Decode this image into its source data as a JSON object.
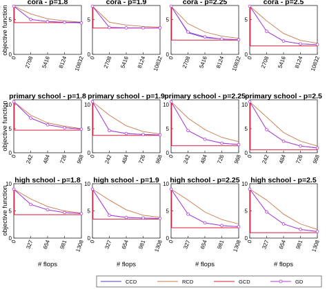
{
  "legend": {
    "entries": [
      {
        "name": "CCD",
        "color": "#4b3fc4",
        "marker": "none"
      },
      {
        "name": "RCD",
        "color": "#c9784a",
        "marker": "none"
      },
      {
        "name": "GCD",
        "color": "#d81b3a",
        "marker": "none"
      },
      {
        "name": "GD",
        "color": "#b23ad6",
        "marker": "circle"
      }
    ]
  },
  "colors": {
    "CCD": "#4b3fc4",
    "RCD": "#c9784a",
    "GCD": "#d81b3a",
    "GD": "#b23ad6"
  },
  "ylabel": "objective function",
  "xlabel": "# flops",
  "chart_data": [
    {
      "type": "line",
      "title": "cora - p=1.8",
      "x": [
        0,
        2708,
        5416,
        8124,
        10832
      ],
      "ylim": [
        0,
        7
      ],
      "yticks": [
        0,
        5
      ],
      "series": [
        {
          "name": "CCD",
          "values": [
            6.9,
            5.0,
            4.7,
            4.6,
            4.6
          ]
        },
        {
          "name": "RCD",
          "values": [
            6.9,
            5.8,
            5.1,
            4.8,
            4.6
          ]
        },
        {
          "name": "GCD",
          "values": [
            4.55,
            4.55,
            4.55,
            4.55,
            4.55
          ]
        },
        {
          "name": "GD",
          "values": [
            6.9,
            5.0,
            4.7,
            4.6,
            4.5
          ]
        }
      ]
    },
    {
      "type": "line",
      "title": "cora - p=1.9",
      "x": [
        0,
        2708,
        5416,
        8124,
        10832
      ],
      "ylim": [
        0,
        7
      ],
      "yticks": [
        0,
        5
      ],
      "series": [
        {
          "name": "CCD",
          "values": [
            6.9,
            3.85,
            3.8,
            3.8,
            3.8
          ]
        },
        {
          "name": "RCD",
          "values": [
            6.9,
            4.6,
            4.2,
            4.0,
            3.9
          ]
        },
        {
          "name": "GCD",
          "values": [
            3.78,
            3.78,
            3.78,
            3.78,
            3.78
          ]
        },
        {
          "name": "GD",
          "values": [
            6.9,
            3.85,
            3.8,
            3.8,
            3.8
          ]
        }
      ]
    },
    {
      "type": "line",
      "title": "cora - p=2.25",
      "x": [
        0,
        2708,
        5416,
        8124,
        10832
      ],
      "ylim": [
        0,
        7
      ],
      "yticks": [
        0,
        5
      ],
      "series": [
        {
          "name": "CCD",
          "values": [
            6.9,
            3.1,
            2.4,
            2.2,
            2.1
          ]
        },
        {
          "name": "RCD",
          "values": [
            6.9,
            4.4,
            3.2,
            2.6,
            2.3
          ]
        },
        {
          "name": "GCD",
          "values": [
            2.05,
            2.05,
            2.05,
            2.05,
            2.05
          ]
        },
        {
          "name": "GD",
          "values": [
            6.9,
            3.2,
            2.5,
            2.2,
            2.1
          ]
        }
      ]
    },
    {
      "type": "line",
      "title": "cora - p=2.5",
      "x": [
        0,
        2708,
        5416,
        8124,
        10832
      ],
      "ylim": [
        0,
        7
      ],
      "yticks": [
        0,
        5
      ],
      "series": [
        {
          "name": "CCD",
          "values": [
            6.9,
            3.3,
            1.9,
            1.5,
            1.4
          ]
        },
        {
          "name": "RCD",
          "values": [
            6.9,
            4.8,
            3.0,
            2.0,
            1.6
          ]
        },
        {
          "name": "GCD",
          "values": [
            1.2,
            1.2,
            1.2,
            1.2,
            1.2
          ]
        },
        {
          "name": "GD",
          "values": [
            6.9,
            3.3,
            1.9,
            1.5,
            1.4
          ]
        }
      ]
    },
    {
      "type": "line",
      "title": "primary school - p=1.8",
      "x": [
        0,
        242,
        484,
        726,
        968
      ],
      "ylim": [
        0,
        11
      ],
      "yticks": [
        0,
        5,
        10
      ],
      "series": [
        {
          "name": "CCD",
          "values": [
            10.6,
            7.2,
            5.8,
            5.2,
            4.9
          ]
        },
        {
          "name": "RCD",
          "values": [
            10.6,
            7.8,
            6.2,
            5.5,
            5.0
          ]
        },
        {
          "name": "GCD",
          "values": [
            4.7,
            4.7,
            4.7,
            4.7,
            4.7
          ]
        },
        {
          "name": "GD",
          "values": [
            10.6,
            7.2,
            5.8,
            5.2,
            4.9
          ]
        }
      ]
    },
    {
      "type": "line",
      "title": "primary school - p=1.9",
      "x": [
        0,
        242,
        484,
        726,
        968
      ],
      "ylim": [
        0,
        11
      ],
      "yticks": [
        0,
        5,
        10
      ],
      "series": [
        {
          "name": "CCD",
          "values": [
            10.6,
            4.6,
            4.0,
            3.8,
            3.7
          ]
        },
        {
          "name": "RCD",
          "values": [
            10.6,
            7.8,
            5.6,
            4.4,
            3.9
          ]
        },
        {
          "name": "GCD",
          "values": [
            3.6,
            3.6,
            3.6,
            3.6,
            3.6
          ]
        },
        {
          "name": "GD",
          "values": [
            10.6,
            4.6,
            4.0,
            3.8,
            3.7
          ]
        }
      ]
    },
    {
      "type": "line",
      "title": "primary school - p=2.25",
      "x": [
        0,
        242,
        484,
        726,
        968
      ],
      "ylim": [
        0,
        11
      ],
      "yticks": [
        0,
        5,
        10
      ],
      "series": [
        {
          "name": "CCD",
          "values": [
            10.6,
            4.6,
            2.8,
            2.0,
            1.7
          ]
        },
        {
          "name": "RCD",
          "values": [
            10.6,
            7.2,
            4.8,
            3.2,
            2.3
          ]
        },
        {
          "name": "GCD",
          "values": [
            1.45,
            1.45,
            1.45,
            1.45,
            1.45
          ]
        },
        {
          "name": "GD",
          "values": [
            10.6,
            4.6,
            2.8,
            2.0,
            1.7
          ]
        }
      ]
    },
    {
      "type": "line",
      "title": "primary school - p=2.5",
      "x": [
        0,
        242,
        484,
        726,
        968
      ],
      "ylim": [
        0,
        11
      ],
      "yticks": [
        0,
        5,
        10
      ],
      "series": [
        {
          "name": "CCD",
          "values": [
            10.6,
            4.8,
            2.4,
            1.4,
            1.0
          ]
        },
        {
          "name": "RCD",
          "values": [
            10.6,
            7.4,
            4.2,
            2.4,
            1.4
          ]
        },
        {
          "name": "GCD",
          "values": [
            0.6,
            0.6,
            0.6,
            0.6,
            0.6
          ]
        },
        {
          "name": "GD",
          "values": [
            10.6,
            4.8,
            2.4,
            1.4,
            1.0
          ]
        }
      ]
    },
    {
      "type": "line",
      "title": "high school - p=1.8",
      "x": [
        0,
        327,
        654,
        981,
        1308
      ],
      "ylim": [
        0,
        10
      ],
      "yticks": [
        0,
        5,
        10
      ],
      "series": [
        {
          "name": "CCD",
          "values": [
            9.0,
            6.2,
            5.2,
            4.7,
            4.5
          ]
        },
        {
          "name": "RCD",
          "values": [
            9.0,
            7.2,
            5.8,
            5.0,
            4.6
          ]
        },
        {
          "name": "GCD",
          "values": [
            4.3,
            4.3,
            4.3,
            4.3,
            4.3
          ]
        },
        {
          "name": "GD",
          "values": [
            9.0,
            6.2,
            5.2,
            4.7,
            4.5
          ]
        }
      ]
    },
    {
      "type": "line",
      "title": "high school - p=1.9",
      "x": [
        0,
        327,
        654,
        981,
        1308
      ],
      "ylim": [
        0,
        10
      ],
      "yticks": [
        0,
        5,
        10
      ],
      "series": [
        {
          "name": "CCD",
          "values": [
            9.0,
            4.2,
            3.8,
            3.7,
            3.6
          ]
        },
        {
          "name": "RCD",
          "values": [
            9.0,
            7.0,
            5.2,
            4.2,
            3.8
          ]
        },
        {
          "name": "GCD",
          "values": [
            3.5,
            3.5,
            3.5,
            3.5,
            3.5
          ]
        },
        {
          "name": "GD",
          "values": [
            9.0,
            4.2,
            3.8,
            3.7,
            3.6
          ]
        }
      ]
    },
    {
      "type": "line",
      "title": "high school - p=2.25",
      "x": [
        0,
        327,
        654,
        981,
        1308
      ],
      "ylim": [
        0,
        10
      ],
      "yticks": [
        0,
        5,
        10
      ],
      "series": [
        {
          "name": "CCD",
          "values": [
            9.0,
            4.4,
            2.8,
            2.3,
            2.1
          ]
        },
        {
          "name": "RCD",
          "values": [
            9.0,
            7.0,
            4.8,
            3.4,
            2.6
          ]
        },
        {
          "name": "GCD",
          "values": [
            1.9,
            1.9,
            1.9,
            1.9,
            1.9
          ]
        },
        {
          "name": "GD",
          "values": [
            9.0,
            4.4,
            2.8,
            2.3,
            2.1
          ]
        }
      ]
    },
    {
      "type": "line",
      "title": "high school - p=2.5",
      "x": [
        0,
        327,
        654,
        981,
        1308
      ],
      "ylim": [
        0,
        10
      ],
      "yticks": [
        0,
        5,
        10
      ],
      "series": [
        {
          "name": "CCD",
          "values": [
            9.0,
            4.8,
            2.6,
            1.6,
            1.2
          ]
        },
        {
          "name": "RCD",
          "values": [
            9.0,
            7.0,
            4.4,
            2.6,
            1.6
          ]
        },
        {
          "name": "GCD",
          "values": [
            1.0,
            1.0,
            1.0,
            1.0,
            1.0
          ]
        },
        {
          "name": "GD",
          "values": [
            9.0,
            4.8,
            2.6,
            1.6,
            1.2
          ]
        }
      ]
    }
  ]
}
